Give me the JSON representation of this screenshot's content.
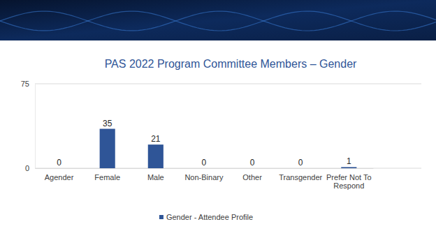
{
  "chart_data": {
    "type": "bar",
    "title": "PAS 2022 Program Committee Members – Gender",
    "categories": [
      "Agender",
      "Female",
      "Male",
      "Non-Binary",
      "Other",
      "Transgender",
      "Prefer Not To Respond"
    ],
    "series": [
      {
        "name": "Gender - Attendee Profile",
        "color": "#2f5597",
        "values": [
          0,
          35,
          21,
          0,
          0,
          0,
          1
        ]
      }
    ],
    "ylim": [
      0,
      75
    ],
    "yticks": [
      0,
      75
    ],
    "grid": true,
    "data_labels": true,
    "legend": "bottom"
  }
}
